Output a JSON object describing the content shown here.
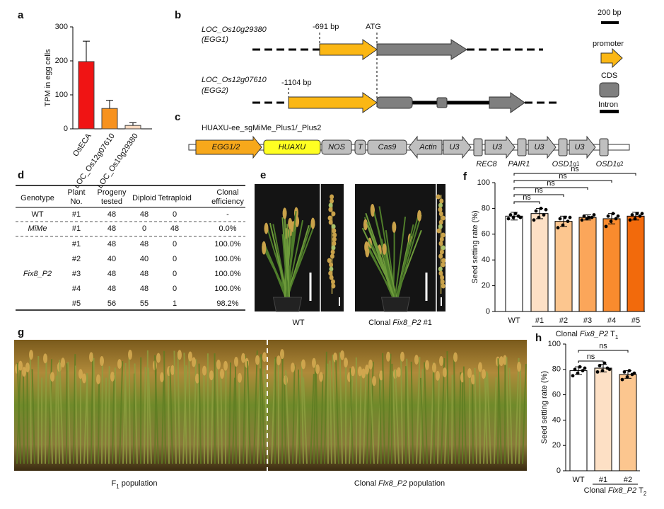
{
  "chart_data": [
    {
      "type": "bar",
      "panel": "a",
      "ylabel": "TPM in egg cells",
      "categories": [
        "OsECA",
        "LOC_Os12g07610",
        "LOC_Os10g29380"
      ],
      "values": [
        198,
        60,
        10
      ],
      "errors": [
        60,
        24,
        8
      ],
      "colors": [
        "#f01414",
        "#f7921e",
        "#fcd9bf"
      ],
      "ylim": [
        0,
        300
      ],
      "yticks": [
        0,
        100,
        200,
        300
      ]
    },
    {
      "type": "bar",
      "panel": "f",
      "ylabel": "Seed setting rate (%)",
      "categories": [
        "WT",
        "#1",
        "#2",
        "#3",
        "#4",
        "#5"
      ],
      "values": [
        74,
        76,
        70,
        73,
        72,
        74
      ],
      "errors": [
        3,
        4,
        4,
        2,
        4,
        3
      ],
      "points": [
        [
          72,
          73,
          74,
          75,
          76,
          73
        ],
        [
          71,
          73,
          75,
          78,
          80,
          79
        ],
        [
          65,
          67,
          70,
          72,
          73,
          73
        ],
        [
          71,
          72,
          73,
          74,
          73,
          75
        ],
        [
          66,
          70,
          72,
          74,
          76,
          74
        ],
        [
          71,
          72,
          74,
          75,
          76,
          76
        ]
      ],
      "colors": [
        "#ffffff",
        "#fde0c5",
        "#fcc68f",
        "#fba65a",
        "#f98b2e",
        "#f26a0c"
      ],
      "ylim": [
        0,
        100
      ],
      "yticks": [
        0,
        20,
        40,
        60,
        80,
        100
      ],
      "comparisons": [
        {
          "label": "ns",
          "pair": [
            0,
            1
          ]
        },
        {
          "label": "ns",
          "pair": [
            0,
            2
          ]
        },
        {
          "label": "ns",
          "pair": [
            0,
            3
          ]
        },
        {
          "label": "ns",
          "pair": [
            0,
            4
          ]
        },
        {
          "label": "ns",
          "pair": [
            0,
            5
          ]
        }
      ],
      "group_label": [
        "Clonal",
        "Fix8_P2",
        "T",
        "1"
      ]
    },
    {
      "type": "bar",
      "panel": "h",
      "ylabel": "Seed setting rate (%)",
      "categories": [
        "WT",
        "#1",
        "#2"
      ],
      "values": [
        79,
        81,
        76
      ],
      "errors": [
        3,
        3,
        3
      ],
      "points": [
        [
          75,
          77,
          79,
          80,
          82,
          81
        ],
        [
          78,
          79,
          81,
          83,
          85,
          80
        ],
        [
          72,
          74,
          76,
          78,
          79,
          77
        ]
      ],
      "colors": [
        "#ffffff",
        "#fde0c5",
        "#fcc68f"
      ],
      "ylim": [
        0,
        100
      ],
      "yticks": [
        0,
        20,
        40,
        60,
        80,
        100
      ],
      "comparisons": [
        {
          "label": "ns",
          "pair": [
            0,
            1
          ]
        },
        {
          "label": "ns",
          "pair": [
            0,
            2
          ]
        }
      ],
      "group_label": [
        "Clonal",
        "Fix8_P2",
        "T",
        "2"
      ]
    }
  ],
  "genes": {
    "panel": "b",
    "start": "ATG",
    "rows": [
      {
        "locus": "LOC_Os10g29380",
        "name": "(EGG1)",
        "promoter": "-691 bp"
      },
      {
        "locus": "LOC_Os12g07610",
        "name": "(EGG2)",
        "promoter": "-1104 bp"
      }
    ],
    "legend": {
      "scale": "200 bp",
      "promoter": "promoter",
      "cds": "CDS",
      "intron": "Intron"
    }
  },
  "construct": {
    "panel": "c",
    "title": "HUAXU-ee_sgMiMe_Plus1/_Plus2",
    "elements": [
      "EGG1/2",
      "HUAXU",
      "NOS",
      "T",
      "Cas9",
      "Actin",
      "U3",
      "U3",
      "U3",
      "U3"
    ],
    "targets": [
      {
        "name": "REC8"
      },
      {
        "name": "PAIR1"
      },
      {
        "name": "OSD1",
        "sup": "g1"
      },
      {
        "name": "OSD1",
        "sup": "g2"
      }
    ]
  },
  "table": {
    "panel": "d",
    "header": [
      [
        "Genotype"
      ],
      [
        "Plant",
        "No."
      ],
      [
        "Progeny",
        "tested"
      ],
      [
        "Diploid"
      ],
      [
        "Tetraploid"
      ],
      [
        "Clonal",
        "efficiency"
      ]
    ],
    "groups": [
      {
        "genotype": "WT",
        "rows": [
          [
            "#1",
            48,
            48,
            0,
            "-"
          ]
        ]
      },
      {
        "genotype": "MiMe",
        "rows": [
          [
            "#1",
            48,
            0,
            48,
            "0.0%"
          ]
        ]
      },
      {
        "genotype": "Fix8_P2",
        "rows": [
          [
            "#1",
            48,
            48,
            0,
            "100.0%"
          ],
          [
            "#2",
            40,
            40,
            0,
            "100.0%"
          ],
          [
            "#3",
            48,
            48,
            0,
            "100.0%"
          ],
          [
            "#4",
            48,
            48,
            0,
            "100.0%"
          ],
          [
            "#5",
            56,
            55,
            1,
            "98.2%"
          ]
        ]
      }
    ]
  },
  "plants": {
    "panel": "e",
    "captions": [
      [
        "WT"
      ],
      [
        "Clonal",
        "Fix8_P2",
        "#1"
      ]
    ]
  },
  "field": {
    "panel": "g",
    "captions": [
      [
        "F",
        "1",
        "population"
      ],
      [
        "Clonal",
        "Fix8_P2",
        "population"
      ]
    ]
  }
}
